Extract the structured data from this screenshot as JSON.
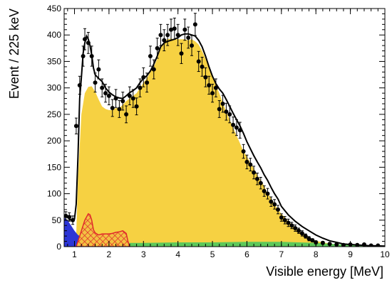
{
  "chart_data": {
    "type": "line",
    "title": "",
    "xlabel": "Visible energy [MeV]",
    "ylabel": "Event / 225 keV",
    "xlim": [
      0.7,
      10.0
    ],
    "ylim": [
      0,
      450
    ],
    "x_ticks": [
      1,
      2,
      3,
      4,
      5,
      6,
      7,
      8,
      9,
      10
    ],
    "y_ticks": [
      0,
      50,
      100,
      150,
      200,
      250,
      300,
      350,
      400,
      450
    ],
    "grid": false,
    "legend": "none",
    "colors": {
      "yellow": "#f6d142",
      "blue": "#2c35d6",
      "red": "#e0292b",
      "hatch_bg": "#f2c242",
      "green": "#5ec85a",
      "fit": "#000000"
    },
    "areas": [
      {
        "role": "yellow-main",
        "x": [
          0.7,
          1.0,
          1.05,
          1.1,
          1.2,
          1.3,
          1.4,
          1.5,
          1.6,
          1.7,
          1.8,
          1.9,
          2.0,
          2.1,
          2.2,
          2.3,
          2.4,
          2.5,
          2.6,
          2.7,
          2.8,
          2.9,
          3.0,
          3.1,
          3.2,
          3.3,
          3.4,
          3.5,
          3.6,
          3.7,
          3.8,
          3.9,
          4.0,
          4.1,
          4.2,
          4.3,
          4.4,
          4.5,
          4.6,
          4.7,
          4.8,
          4.9,
          5.0,
          5.1,
          5.2,
          5.3,
          5.4,
          5.5,
          5.6,
          5.7,
          5.8,
          5.9,
          6.0,
          6.1,
          6.2,
          6.3,
          6.4,
          6.5,
          6.6,
          6.7,
          6.8,
          6.9,
          7.0,
          7.1,
          7.2,
          7.3,
          7.4,
          7.5,
          7.6,
          7.7,
          7.8,
          7.9,
          8.0,
          8.2,
          8.4,
          8.6,
          8.8,
          9.0,
          9.5,
          10.0
        ],
        "y": [
          0,
          0,
          20,
          130,
          250,
          290,
          302,
          303,
          293,
          278,
          265,
          260,
          258,
          258,
          262,
          262,
          268,
          275,
          280,
          285,
          290,
          300,
          310,
          318,
          330,
          340,
          355,
          375,
          388,
          392,
          393,
          392,
          392,
          392,
          392,
          390,
          392,
          388,
          382,
          370,
          355,
          340,
          322,
          305,
          290,
          272,
          255,
          240,
          225,
          210,
          195,
          180,
          170,
          158,
          148,
          135,
          125,
          115,
          100,
          92,
          80,
          70,
          62,
          55,
          48,
          42,
          36,
          30,
          26,
          22,
          18,
          14,
          11,
          8,
          6,
          4,
          3,
          2,
          1,
          0
        ]
      },
      {
        "role": "green-band",
        "x": [
          0.7,
          1.0,
          2.0,
          3.0,
          4.0,
          5.0,
          6.0,
          7.0,
          8.0,
          8.5,
          9.0,
          10.0
        ],
        "y": [
          7,
          7,
          7,
          7,
          8,
          8,
          9,
          9,
          7,
          5,
          3,
          2
        ]
      },
      {
        "role": "blue",
        "x": [
          0.7,
          0.8,
          0.9,
          1.0,
          1.1,
          1.2,
          1.3,
          1.4,
          1.5,
          1.6,
          1.7,
          1.8,
          1.9,
          2.0,
          2.1,
          2.2
        ],
        "y": [
          55,
          50,
          40,
          30,
          22,
          18,
          16,
          14,
          12,
          10,
          9,
          8,
          6,
          4,
          2,
          0
        ]
      },
      {
        "role": "red-hatched",
        "x": [
          1.05,
          1.1,
          1.2,
          1.3,
          1.4,
          1.45,
          1.5,
          1.55,
          1.6,
          1.7,
          1.8,
          1.9,
          2.0,
          2.1,
          2.2,
          2.3,
          2.4,
          2.5,
          2.55,
          2.6
        ],
        "y": [
          0,
          10,
          30,
          50,
          62,
          60,
          50,
          32,
          26,
          22,
          24,
          24,
          24,
          25,
          27,
          28,
          30,
          25,
          10,
          0
        ]
      }
    ],
    "series": [
      {
        "role": "fit",
        "x": [
          0.7,
          0.8,
          0.9,
          1.0,
          1.05,
          1.1,
          1.15,
          1.2,
          1.25,
          1.3,
          1.35,
          1.4,
          1.45,
          1.5,
          1.55,
          1.6,
          1.7,
          1.8,
          1.9,
          2.0,
          2.1,
          2.2,
          2.3,
          2.4,
          2.5,
          2.6,
          2.7,
          2.8,
          2.9,
          3.0,
          3.1,
          3.2,
          3.3,
          3.4,
          3.5,
          3.6,
          3.7,
          3.8,
          3.9,
          4.0,
          4.1,
          4.2,
          4.3,
          4.4,
          4.5,
          4.6,
          4.7,
          4.8,
          4.9,
          5.0,
          5.1,
          5.2,
          5.3,
          5.4,
          5.5,
          5.6,
          5.7,
          5.8,
          5.9,
          6.0,
          6.1,
          6.2,
          6.3,
          6.4,
          6.5,
          6.6,
          6.7,
          6.8,
          6.9,
          7.0,
          7.2,
          7.4,
          7.6,
          7.8,
          8.0,
          8.2,
          8.4,
          8.6,
          8.8,
          9.0,
          9.5,
          10.0
        ],
        "y": [
          60,
          55,
          50,
          52,
          80,
          170,
          280,
          320,
          365,
          385,
          398,
          392,
          380,
          362,
          338,
          325,
          318,
          312,
          300,
          292,
          287,
          283,
          281,
          280,
          285,
          291,
          295,
          300,
          310,
          318,
          323,
          332,
          345,
          360,
          378,
          385,
          388,
          390,
          392,
          395,
          400,
          402,
          402,
          400,
          398,
          390,
          378,
          360,
          340,
          322,
          308,
          298,
          290,
          278,
          265,
          252,
          240,
          228,
          214,
          198,
          185,
          172,
          160,
          149,
          136,
          125,
          112,
          100,
          90,
          76,
          60,
          48,
          38,
          30,
          22,
          16,
          11,
          8,
          5,
          4,
          2,
          1
        ]
      },
      {
        "role": "data",
        "x": [
          0.75,
          0.85,
          0.95,
          1.05,
          1.15,
          1.25,
          1.3,
          1.4,
          1.5,
          1.6,
          1.7,
          1.8,
          1.9,
          2.0,
          2.1,
          2.2,
          2.3,
          2.4,
          2.5,
          2.6,
          2.7,
          2.8,
          2.9,
          3.0,
          3.1,
          3.2,
          3.3,
          3.4,
          3.5,
          3.6,
          3.7,
          3.8,
          3.9,
          4.0,
          4.1,
          4.2,
          4.3,
          4.4,
          4.5,
          4.6,
          4.7,
          4.8,
          4.9,
          5.0,
          5.1,
          5.2,
          5.3,
          5.4,
          5.5,
          5.6,
          5.7,
          5.8,
          5.9,
          6.0,
          6.1,
          6.2,
          6.3,
          6.4,
          6.5,
          6.6,
          6.7,
          6.8,
          6.9,
          7.0,
          7.1,
          7.2,
          7.3,
          7.4,
          7.5,
          7.6,
          7.7,
          7.8,
          7.9,
          8.0,
          8.2,
          8.4,
          8.6,
          8.8,
          9.0,
          9.2,
          9.4,
          9.6,
          9.8
        ],
        "y": [
          58,
          56,
          50,
          228,
          305,
          360,
          392,
          385,
          360,
          310,
          335,
          300,
          290,
          285,
          262,
          280,
          260,
          275,
          250,
          285,
          280,
          265,
          300,
          320,
          310,
          360,
          335,
          375,
          400,
          390,
          400,
          410,
          412,
          400,
          365,
          410,
          395,
          380,
          420,
          350,
          340,
          320,
          305,
          290,
          300,
          260,
          270,
          255,
          250,
          230,
          225,
          220,
          180,
          160,
          155,
          140,
          128,
          120,
          105,
          100,
          85,
          80,
          70,
          55,
          50,
          45,
          40,
          35,
          30,
          25,
          20,
          15,
          12,
          8,
          7,
          5,
          4,
          3,
          4,
          3,
          4,
          2,
          2
        ],
        "err": [
          8,
          8,
          8,
          15,
          17,
          19,
          20,
          20,
          19,
          18,
          18,
          17,
          17,
          17,
          16,
          17,
          16,
          17,
          16,
          17,
          17,
          16,
          17,
          18,
          18,
          19,
          18,
          19,
          20,
          20,
          20,
          20,
          20,
          20,
          19,
          20,
          20,
          19,
          21,
          19,
          18,
          18,
          17,
          17,
          17,
          16,
          16,
          16,
          16,
          15,
          15,
          15,
          13,
          13,
          12,
          12,
          11,
          11,
          10,
          10,
          9,
          9,
          8,
          7,
          7,
          7,
          6,
          6,
          5,
          5,
          4,
          4,
          3,
          3,
          3,
          2,
          2,
          2,
          2,
          2,
          2,
          1,
          1
        ]
      }
    ]
  }
}
